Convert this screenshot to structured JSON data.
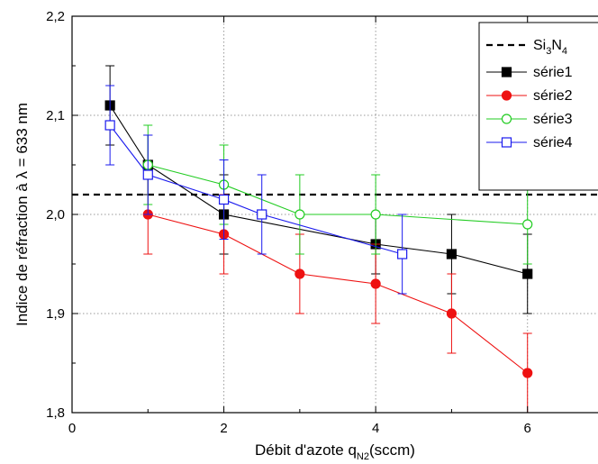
{
  "chart_data": {
    "type": "line",
    "xlabel": "Débit d'azote q",
    "xlabel_sub": "N2",
    "xlabel_suffix": "(sccm)",
    "ylabel": "Indice de réfraction à λ = 633 nm",
    "xlim": [
      0,
      7
    ],
    "ylim": [
      1.8,
      2.2
    ],
    "x_ticks": [
      0,
      2,
      4,
      6
    ],
    "x_tick_labels": [
      "0",
      "2",
      "4",
      "6"
    ],
    "y_ticks": [
      1.8,
      1.9,
      2.0,
      2.1,
      2.2
    ],
    "y_tick_labels": [
      "1,8",
      "1,9",
      "2,0",
      "2,1",
      "2,2"
    ],
    "grid": true,
    "legend_position": "top-right",
    "reference_line": {
      "name": "Si3N4",
      "label_main": "Si",
      "label_sub1": "3",
      "label_mid": "N",
      "label_sub2": "4",
      "y": 2.02,
      "color": "#000000",
      "style": "dashed"
    },
    "series": [
      {
        "name": "série1",
        "color": "#000000",
        "marker": "square-filled",
        "x": [
          0.5,
          1,
          2,
          4,
          5,
          6
        ],
        "y": [
          2.11,
          2.05,
          2.0,
          1.97,
          1.96,
          1.94
        ],
        "err": [
          0.04,
          0.03,
          0.04,
          0.03,
          0.04,
          0.04
        ]
      },
      {
        "name": "série2",
        "color": "#ee1111",
        "marker": "circle-filled",
        "x": [
          1,
          2,
          3,
          4,
          5,
          6
        ],
        "y": [
          2.0,
          1.98,
          1.94,
          1.93,
          1.9,
          1.84
        ],
        "err": [
          0.04,
          0.04,
          0.04,
          0.04,
          0.04,
          0.04
        ]
      },
      {
        "name": "série3",
        "color": "#22cc22",
        "marker": "circle-open",
        "x": [
          1,
          2,
          3,
          4,
          6
        ],
        "y": [
          2.05,
          2.03,
          2.0,
          2.0,
          1.99
        ],
        "err": [
          0.04,
          0.04,
          0.04,
          0.04,
          0.04
        ]
      },
      {
        "name": "série4",
        "color": "#1a1aee",
        "marker": "square-open",
        "x": [
          0.5,
          1,
          2,
          2.5,
          4.35
        ],
        "y": [
          2.09,
          2.04,
          2.015,
          2.0,
          1.96
        ],
        "err": [
          0.04,
          0.04,
          0.04,
          0.04,
          0.04
        ]
      }
    ]
  }
}
